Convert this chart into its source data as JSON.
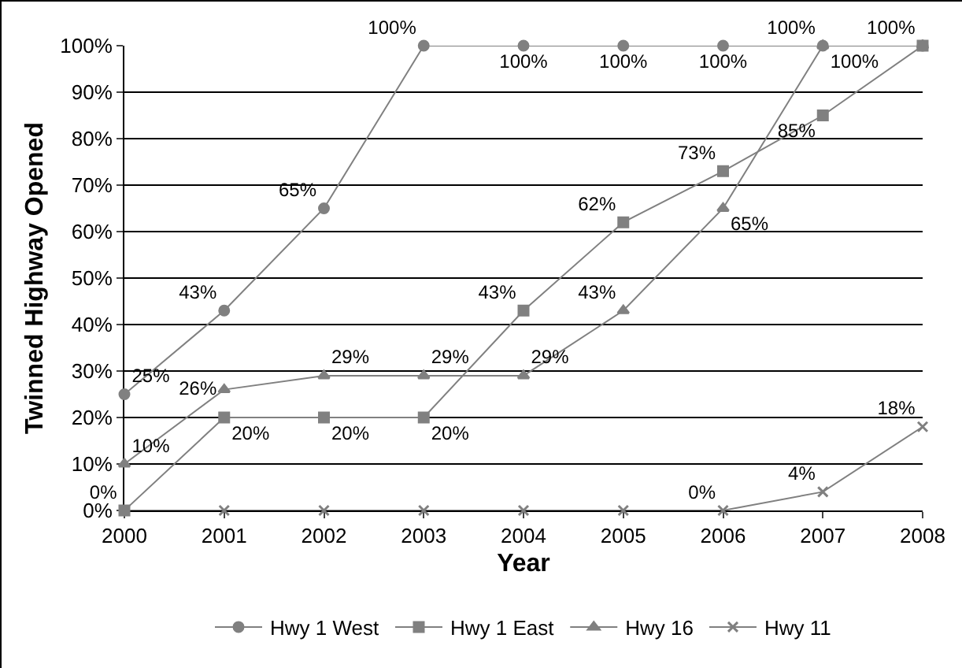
{
  "chart_data": {
    "type": "line",
    "xlabel": "Year",
    "ylabel": "Twinned Highway Opened",
    "x": [
      2000,
      2001,
      2002,
      2003,
      2004,
      2005,
      2006,
      2007,
      2008
    ],
    "xlim": [
      2000,
      2008
    ],
    "xticks": [
      2000,
      2001,
      2002,
      2003,
      2004,
      2005,
      2006,
      2007,
      2008
    ],
    "ylim": [
      0,
      100
    ],
    "yticks": [
      {
        "value": 0,
        "label": "0%"
      },
      {
        "value": 10,
        "label": "10%"
      },
      {
        "value": 20,
        "label": "20%"
      },
      {
        "value": 30,
        "label": "30%"
      },
      {
        "value": 40,
        "label": "40%"
      },
      {
        "value": 50,
        "label": "50%"
      },
      {
        "value": 60,
        "label": "60%"
      },
      {
        "value": 70,
        "label": "70%"
      },
      {
        "value": 80,
        "label": "80%"
      },
      {
        "value": 90,
        "label": "90%"
      },
      {
        "value": 100,
        "label": "100%"
      }
    ],
    "grid": "y",
    "legend": "bottom",
    "series": [
      {
        "name": "Hwy 1 West",
        "color": "#808080",
        "marker": "circle",
        "values": [
          25,
          43,
          65,
          100,
          100,
          100,
          100,
          100,
          100
        ],
        "value_labels": [
          "25%",
          "43%",
          "65%",
          "100%",
          "100%",
          "100%",
          "100%",
          "100%",
          null
        ]
      },
      {
        "name": "Hwy 1 East",
        "color": "#808080",
        "marker": "square",
        "values": [
          0,
          20,
          20,
          20,
          43,
          62,
          73,
          85,
          100
        ],
        "value_labels": [
          null,
          "20%",
          "20%",
          "20%",
          "43%",
          "62%",
          "73%",
          "85%",
          "100%"
        ]
      },
      {
        "name": "Hwy 16",
        "color": "#808080",
        "marker": "triangle",
        "values": [
          10,
          26,
          29,
          29,
          29,
          43,
          65,
          100,
          100
        ],
        "value_labels": [
          "10%",
          "26%",
          "29%",
          "29%",
          "29%",
          "43%",
          "65%",
          "100%",
          null
        ]
      },
      {
        "name": "Hwy 11",
        "color": "#808080",
        "marker": "cross",
        "values": [
          0,
          0,
          0,
          0,
          0,
          0,
          0,
          4,
          18
        ],
        "value_labels": [
          "0%",
          null,
          null,
          null,
          null,
          null,
          "0%",
          "4%",
          "18%"
        ]
      }
    ]
  }
}
